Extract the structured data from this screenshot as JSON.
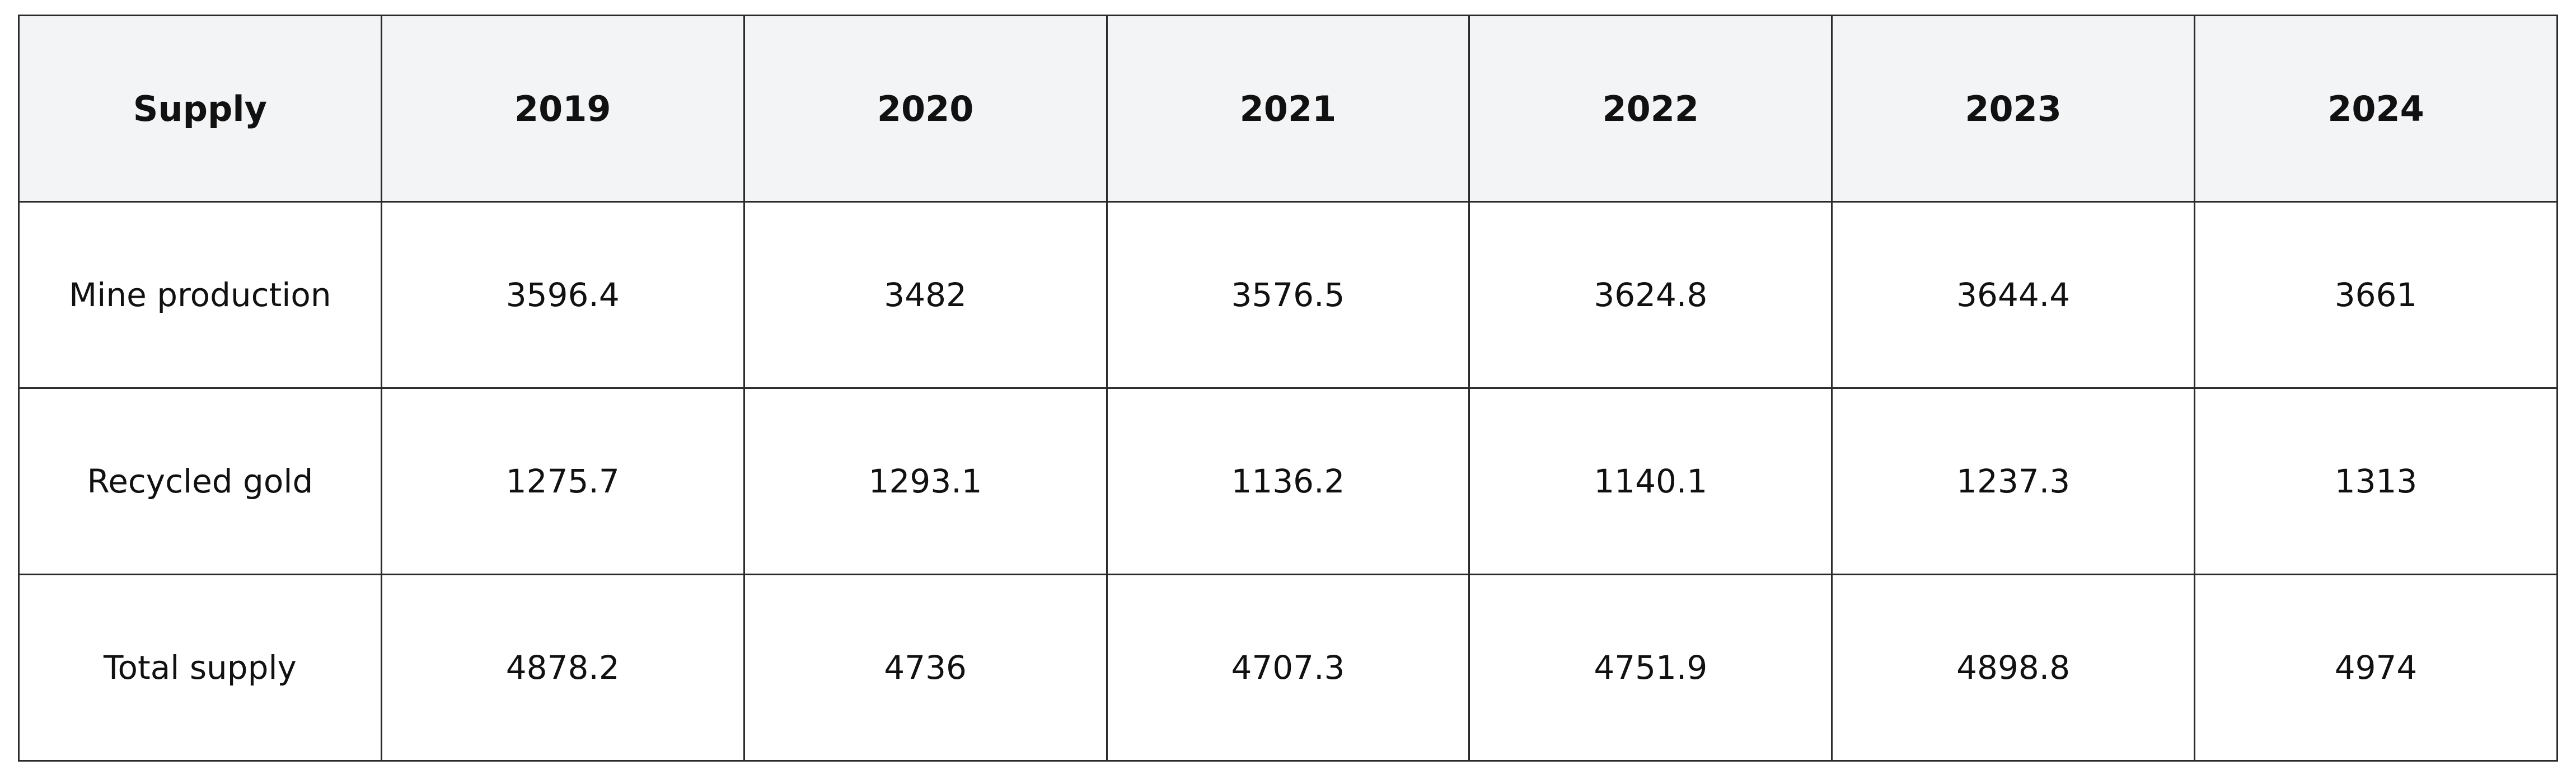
{
  "table": {
    "header": [
      "Supply",
      "2019",
      "2020",
      "2021",
      "2022",
      "2023",
      "2024"
    ],
    "rows": [
      [
        "Mine production",
        3596.4,
        3482,
        3576.5,
        3624.8,
        3644.4,
        3661
      ],
      [
        "Recycled gold",
        1275.7,
        1293.1,
        1136.2,
        1140.1,
        1237.3,
        1313
      ],
      [
        "Total supply",
        4878.2,
        4736,
        4707.3,
        4751.9,
        4898.8,
        4974
      ]
    ]
  }
}
